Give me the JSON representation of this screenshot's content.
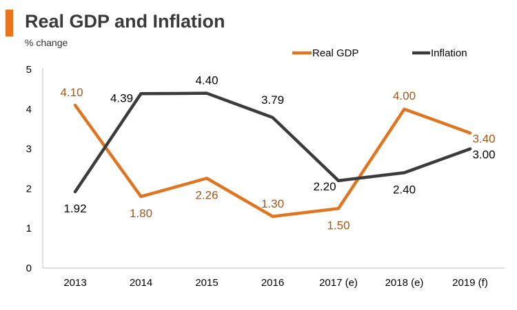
{
  "header": {
    "title": "Real GDP and Inflation",
    "subtitle": "% change"
  },
  "colors": {
    "accent": "#e8731c",
    "gdp_line": "#e0741f",
    "inflation_line": "#3b3b3b",
    "gdp_label": "#a0561a",
    "inflation_label": "#000000"
  },
  "chart_data": {
    "type": "line",
    "title": "Real GDP and Inflation",
    "ylabel": "% change",
    "xlabel": "",
    "categories": [
      "2013",
      "2014",
      "2015",
      "2016",
      "2017 (e)",
      "2018 (e)",
      "2019 (f)"
    ],
    "ylim": [
      0,
      5
    ],
    "yticks": [
      "0",
      "1",
      "2",
      "3",
      "4",
      "5"
    ],
    "legend_position": "top-right",
    "series": [
      {
        "name": "Real GDP",
        "values": [
          4.1,
          1.8,
          2.26,
          1.3,
          1.5,
          4.0,
          3.4
        ],
        "labels": [
          "4.10",
          "1.80",
          "2.26",
          "1.30",
          "1.50",
          "4.00",
          "3.40"
        ]
      },
      {
        "name": "Inflation",
        "values": [
          1.92,
          4.39,
          4.4,
          3.79,
          2.2,
          2.4,
          3.0
        ],
        "labels": [
          "1.92",
          "4.39",
          "4.40",
          "3.79",
          "2.20",
          "2.40",
          "3.00"
        ]
      }
    ]
  }
}
